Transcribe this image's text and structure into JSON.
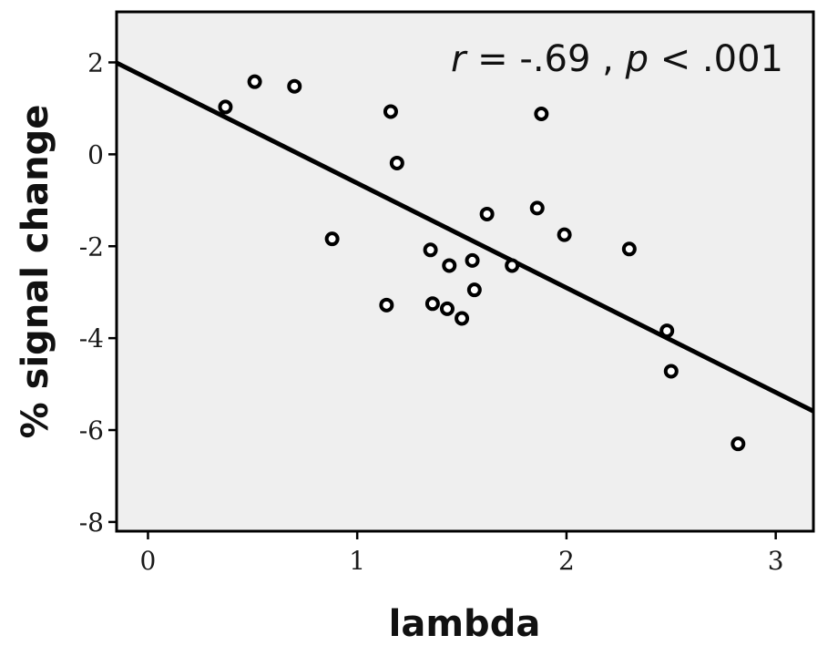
{
  "chart_data": {
    "type": "scatter",
    "title": "",
    "xlabel": "lambda",
    "ylabel": "% signal change",
    "xlim": [
      -0.15,
      3.18
    ],
    "ylim": [
      -8.2,
      3.1
    ],
    "xticks": [
      0,
      1,
      2,
      3
    ],
    "yticks": [
      2,
      0,
      -2,
      -4,
      -6,
      -8
    ],
    "xtick_labels": [
      "0",
      "1",
      "2",
      "3"
    ],
    "ytick_labels": [
      "2",
      "0",
      "-2",
      "-4",
      "-6",
      "-8"
    ],
    "grid": false,
    "legend": null,
    "points": [
      {
        "x": 0.37,
        "y": 1.03
      },
      {
        "x": 0.51,
        "y": 1.58
      },
      {
        "x": 0.7,
        "y": 1.48
      },
      {
        "x": 0.88,
        "y": -1.84
      },
      {
        "x": 1.14,
        "y": -3.28
      },
      {
        "x": 1.16,
        "y": 0.93
      },
      {
        "x": 1.19,
        "y": -0.19
      },
      {
        "x": 1.35,
        "y": -2.08
      },
      {
        "x": 1.36,
        "y": -3.25
      },
      {
        "x": 1.43,
        "y": -3.36
      },
      {
        "x": 1.44,
        "y": -2.42
      },
      {
        "x": 1.5,
        "y": -3.57
      },
      {
        "x": 1.55,
        "y": -2.31
      },
      {
        "x": 1.56,
        "y": -2.95
      },
      {
        "x": 1.62,
        "y": -1.3
      },
      {
        "x": 1.74,
        "y": -2.42
      },
      {
        "x": 1.86,
        "y": -1.17
      },
      {
        "x": 1.88,
        "y": 0.88
      },
      {
        "x": 1.99,
        "y": -1.75
      },
      {
        "x": 2.3,
        "y": -2.06
      },
      {
        "x": 2.48,
        "y": -3.84
      },
      {
        "x": 2.5,
        "y": -4.72
      },
      {
        "x": 2.82,
        "y": -6.3
      }
    ],
    "fit_line": {
      "x": [
        -0.15,
        3.18
      ],
      "y": [
        1.99,
        -5.59
      ]
    },
    "annotation": {
      "r_label": "r",
      "r_text": " = -.69 , ",
      "p_label": "p",
      "p_text": " < .001"
    },
    "colors": {
      "background": "#efefef",
      "frame": "#000000",
      "marker": "#000000",
      "line": "#000000"
    }
  }
}
